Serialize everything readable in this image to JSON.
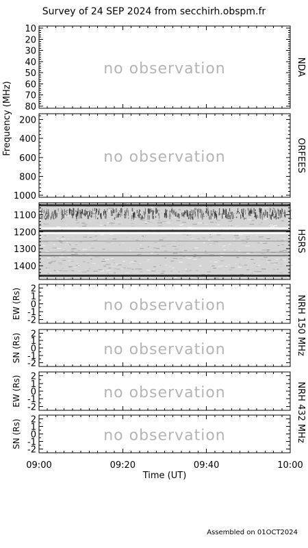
{
  "title": "Survey of 24 SEP 2024 from secchirh.obspm.fr",
  "footer": "Assembled on 01OCT2024",
  "placeholder_text": "no observation",
  "colors": {
    "frame": "#000000",
    "placeholder": "#b4b4b4",
    "background": "#ffffff"
  },
  "chart_data": [
    {
      "type": "heatmap",
      "panel": "NDA",
      "status": "no observation",
      "ylabel": "",
      "ylim": [
        8,
        82
      ],
      "y_ticks": [
        10,
        20,
        30,
        40,
        50,
        60,
        70,
        80
      ],
      "x_range": [
        "09:00",
        "10:00"
      ]
    },
    {
      "type": "heatmap",
      "panel": "ORFEES",
      "status": "no observation",
      "ylabel": "",
      "ylim": [
        140,
        1020
      ],
      "y_ticks": [
        200,
        400,
        600,
        800,
        1000
      ],
      "x_range": [
        "09:00",
        "10:00"
      ]
    },
    {
      "type": "heatmap",
      "panel": "HSRS",
      "status": "observed",
      "ylabel": "",
      "ylim": [
        1030,
        1480
      ],
      "y_ticks": [
        1100,
        1200,
        1300,
        1400
      ],
      "x_range": [
        "09:00",
        "10:00"
      ],
      "features": [
        {
          "kind": "dark band",
          "freq_mhz": 1045
        },
        {
          "kind": "noisy region",
          "freq_mhz": [
            1060,
            1130
          ]
        },
        {
          "kind": "bright band",
          "freq_mhz": 1180
        },
        {
          "kind": "dark band",
          "freq_mhz": 1195
        },
        {
          "kind": "bright band",
          "freq_mhz": 1208
        },
        {
          "kind": "faint line",
          "freq_mhz": 1255
        },
        {
          "kind": "faint line",
          "freq_mhz": 1320
        },
        {
          "kind": "gray band",
          "freq_mhz": 1340
        },
        {
          "kind": "dark band",
          "freq_mhz": 1458
        }
      ]
    },
    {
      "type": "line",
      "panel": "NRH 150 MHz",
      "subplot": "EW",
      "status": "no observation",
      "ylabel": "EW (Rs)",
      "ylim": [
        -2.5,
        2.5
      ],
      "y_ticks": [
        -2,
        -1,
        0,
        1,
        2
      ],
      "x_range": [
        "09:00",
        "10:00"
      ]
    },
    {
      "type": "line",
      "panel": "NRH 150 MHz",
      "subplot": "SN",
      "status": "no observation",
      "ylabel": "SN (Rs)",
      "ylim": [
        -2.5,
        2.5
      ],
      "y_ticks": [
        -2,
        -1,
        0,
        1,
        2
      ],
      "x_range": [
        "09:00",
        "10:00"
      ]
    },
    {
      "type": "line",
      "panel": "NRH 432 MHz",
      "subplot": "EW",
      "status": "no observation",
      "ylabel": "EW (Rs)",
      "ylim": [
        -2.5,
        2.5
      ],
      "y_ticks": [
        -2,
        -1,
        0,
        1,
        2
      ],
      "x_range": [
        "09:00",
        "10:00"
      ]
    },
    {
      "type": "line",
      "panel": "NRH 432 MHz",
      "subplot": "SN",
      "status": "no observation",
      "ylabel": "SN (Rs)",
      "ylim": [
        -2.5,
        2.5
      ],
      "y_ticks": [
        -2,
        -1,
        0,
        1,
        2
      ],
      "x_range": [
        "09:00",
        "10:00"
      ]
    }
  ],
  "frequency_axis_label": "Frequency (MHz)",
  "right_labels": {
    "nda": "NDA",
    "orfees": "ORFEES",
    "hsrs": "HSRS",
    "nrh150": "NRH 150 MHz",
    "nrh432": "NRH 432 MHz"
  },
  "time_axis": {
    "label": "Time (UT)",
    "ticks": [
      "09:00",
      "09:20",
      "09:40",
      "10:00"
    ],
    "tick_minutes": [
      0,
      20,
      40,
      60
    ],
    "range_minutes": [
      0,
      60
    ]
  }
}
